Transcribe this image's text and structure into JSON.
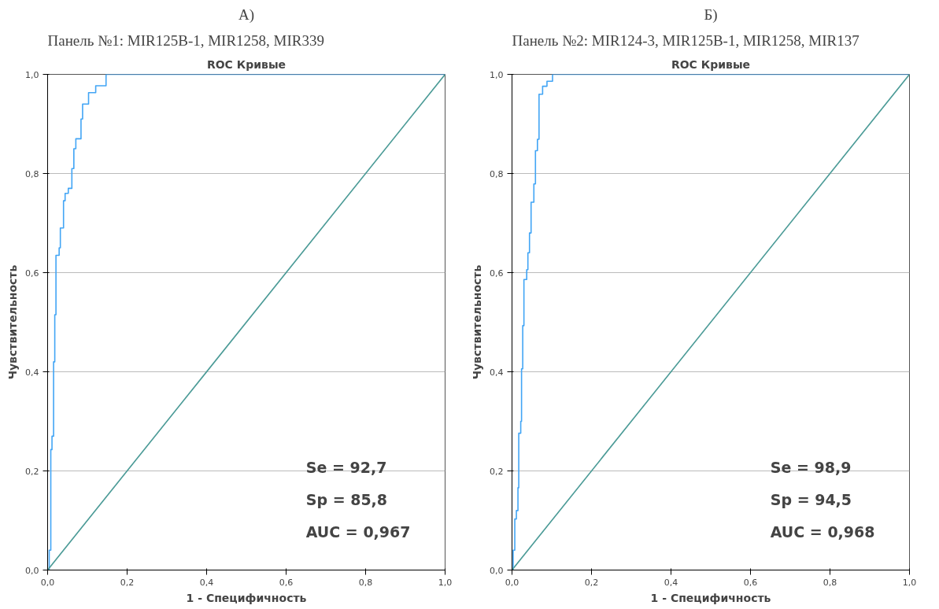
{
  "chart_data": [
    {
      "type": "line",
      "title": "ROC Кривые",
      "subtitle": "Панель №1: MIR125B-1, MIR1258, MIR339",
      "xlabel": "1 - Специфичность",
      "ylabel": "Чувствительность",
      "annotations": [
        "А)",
        "Se = 92,7",
        "Sp = 85,8",
        "AUC = 0,967"
      ],
      "xlim": [
        0,
        1
      ],
      "ylim": [
        0,
        1
      ],
      "xticks": [
        {
          "value": 0,
          "label": "0,0"
        },
        {
          "value": 0.2,
          "label": "0,2"
        },
        {
          "value": 0.4,
          "label": "0,4"
        },
        {
          "value": 0.6,
          "label": "0,6"
        },
        {
          "value": 0.8,
          "label": "0,8"
        },
        {
          "value": 1,
          "label": "1,0"
        }
      ],
      "yticks": [
        {
          "value": 0,
          "label": "0,0"
        },
        {
          "value": 0.2,
          "label": "0,2"
        },
        {
          "value": 0.4,
          "label": "0,4"
        },
        {
          "value": 0.6,
          "label": "0,6"
        },
        {
          "value": 0.8,
          "label": "0,8"
        },
        {
          "value": 1,
          "label": "1,0"
        }
      ],
      "grid": "y",
      "series": [
        {
          "type": "step",
          "color": "#42a5f5",
          "x": [
            0,
            0.004,
            0.008,
            0.011,
            0.015,
            0.018,
            0.021,
            0.029,
            0.032,
            0.04,
            0.044,
            0.052,
            0.061,
            0.066,
            0.071,
            0.084,
            0.088,
            0.103,
            0.121,
            0.137,
            0.147,
            1
          ],
          "values": [
            0,
            0.04,
            0.243,
            0.27,
            0.42,
            0.515,
            0.635,
            0.65,
            0.69,
            0.745,
            0.76,
            0.77,
            0.81,
            0.85,
            0.87,
            0.91,
            0.94,
            0.963,
            0.977,
            0.977,
            1,
            1
          ]
        },
        {
          "type": "line",
          "color": "#4a9a96",
          "x": [
            0,
            1
          ],
          "values": [
            0,
            1
          ]
        }
      ]
    },
    {
      "type": "line",
      "title": "ROC Кривые",
      "subtitle": "Панель №2: MIR124-3, MIR125B-1, MIR1258, MIR137",
      "xlabel": "1 - Специфичность",
      "ylabel": "Чувствительность",
      "annotations": [
        "Б)",
        "Se = 98,9",
        "Sp = 94,5",
        "AUC = 0,968"
      ],
      "xlim": [
        0,
        1
      ],
      "ylim": [
        0,
        1
      ],
      "xticks": [
        {
          "value": 0,
          "label": "0,0"
        },
        {
          "value": 0.2,
          "label": "0,2"
        },
        {
          "value": 0.4,
          "label": "0,4"
        },
        {
          "value": 0.6,
          "label": "0,6"
        },
        {
          "value": 0.8,
          "label": "0,8"
        },
        {
          "value": 1,
          "label": "1,0"
        }
      ],
      "yticks": [
        {
          "value": 0,
          "label": "0,0"
        },
        {
          "value": 0.2,
          "label": "0,2"
        },
        {
          "value": 0.4,
          "label": "0,4"
        },
        {
          "value": 0.6,
          "label": "0,6"
        },
        {
          "value": 0.8,
          "label": "0,8"
        },
        {
          "value": 1,
          "label": "1,0"
        }
      ],
      "grid": "y",
      "series": [
        {
          "type": "step",
          "color": "#42a5f5",
          "x": [
            0,
            0.003,
            0.007,
            0.011,
            0.015,
            0.017,
            0.022,
            0.024,
            0.027,
            0.03,
            0.037,
            0.04,
            0.044,
            0.048,
            0.055,
            0.059,
            0.064,
            0.068,
            0.077,
            0.088,
            0.102,
            1
          ],
          "values": [
            0,
            0.04,
            0.103,
            0.12,
            0.166,
            0.276,
            0.3,
            0.406,
            0.493,
            0.586,
            0.606,
            0.64,
            0.68,
            0.742,
            0.779,
            0.846,
            0.869,
            0.96,
            0.976,
            0.986,
            1,
            1
          ]
        },
        {
          "type": "line",
          "color": "#4a9a96",
          "x": [
            0,
            1
          ],
          "values": [
            0,
            1
          ]
        }
      ]
    }
  ]
}
